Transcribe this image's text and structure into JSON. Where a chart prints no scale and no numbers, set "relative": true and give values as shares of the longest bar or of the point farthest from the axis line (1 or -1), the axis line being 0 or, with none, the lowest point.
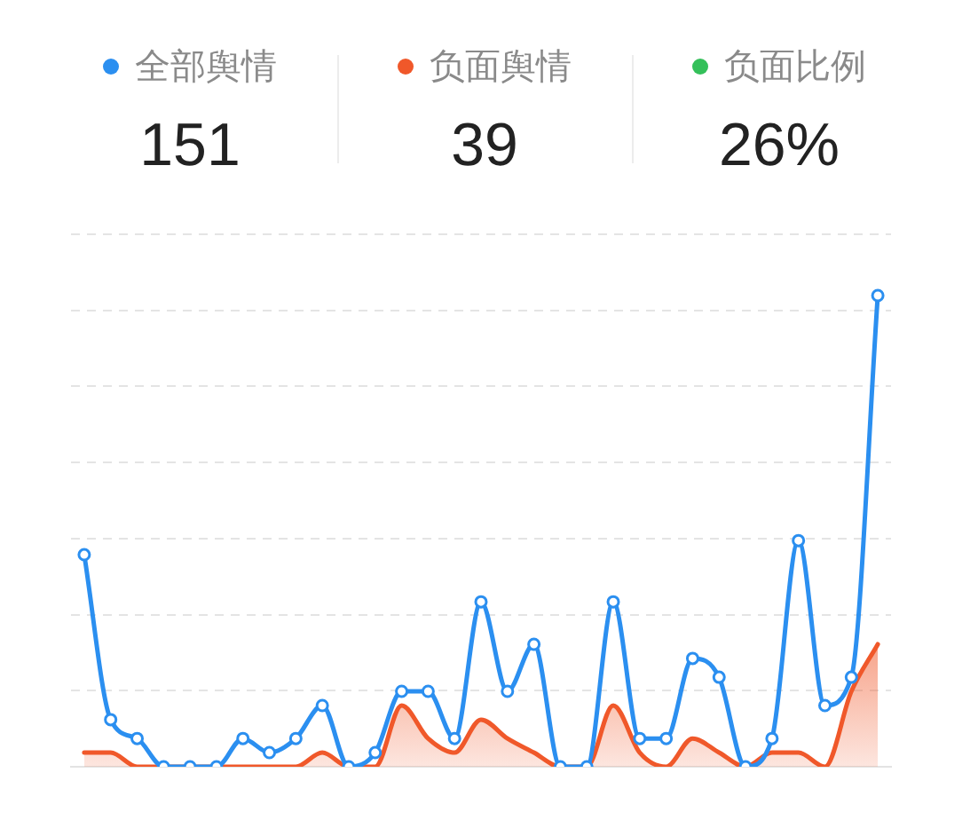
{
  "chart_data": [
    {
      "type": "other",
      "categories": [
        "全部舆情",
        "负面舆情",
        "负面比例"
      ],
      "values": [
        151,
        39,
        26
      ],
      "value_labels": [
        "151",
        "39",
        "26%"
      ],
      "colors": [
        "#2b8ff0",
        "#f0582a",
        "#34c05a"
      ]
    },
    {
      "type": "line",
      "categories": [
        null,
        null,
        null,
        null,
        null,
        null,
        null,
        null,
        null,
        null,
        null,
        null,
        null,
        null,
        null,
        null,
        null,
        null,
        null,
        null,
        null,
        null,
        null,
        null,
        null,
        null,
        null,
        null,
        null,
        null,
        null
      ],
      "relative": true,
      "grid": "y",
      "tick_labels": false,
      "marker": "circle",
      "series": [
        {
          "color": "#2b8ff0",
          "values": [
            0.45,
            0.1,
            0.06,
            0,
            0,
            0,
            0.06,
            0.03,
            0.06,
            0.13,
            0,
            0.03,
            0.16,
            0.16,
            0.06,
            0.35,
            0.16,
            0.26,
            0,
            0,
            0.35,
            0.06,
            0.06,
            0.23,
            0.19,
            0,
            0.06,
            0.48,
            0.13,
            0.19,
            1
          ]
        },
        {
          "type": "area",
          "color": "#f0582a",
          "marker": "none",
          "values": [
            0.03,
            0.03,
            0,
            0,
            0,
            0,
            0,
            0,
            0,
            0.03,
            0,
            0,
            0.13,
            0.06,
            0.03,
            0.1,
            0.06,
            0.03,
            0,
            0,
            0.13,
            0.03,
            0,
            0.06,
            0.03,
            0,
            0.03,
            0.03,
            0,
            0.16,
            0.26
          ]
        }
      ]
    }
  ]
}
